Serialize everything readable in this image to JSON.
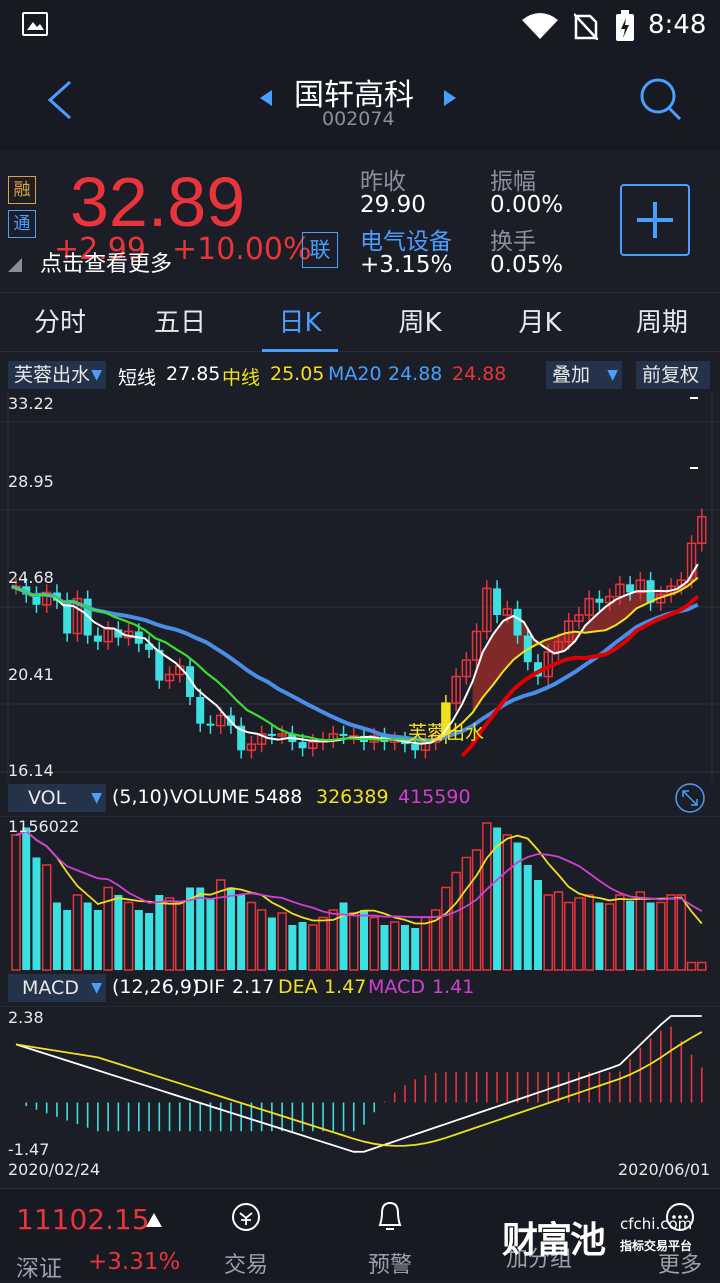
{
  "status": {
    "time": "8:48"
  },
  "header": {
    "title": "国轩高科",
    "code": "002074"
  },
  "quote": {
    "price": "32.89",
    "change": "+2.99",
    "change_pct": "+10.00%",
    "tag_rong": "融",
    "tag_tong": "通",
    "tag_lian": "联",
    "hint": "点击查看更多",
    "prev_close_label": "昨收",
    "prev_close": "29.90",
    "amplitude_label": "振幅",
    "amplitude": "0.00%",
    "sector_label": "电气设备",
    "sector_change": "+3.15%",
    "turnover_label": "换手",
    "turnover": "0.05%",
    "colors": {
      "up": "#e8343a",
      "down": "#3de0e0",
      "accent": "#4a9eff"
    }
  },
  "tabs": [
    "分时",
    "五日",
    "日K",
    "周K",
    "月K",
    "周期"
  ],
  "active_tab": 2,
  "kline": {
    "indicator": "芙蓉出水",
    "short_label": "短线",
    "short_val": "27.85",
    "mid_label": "中线",
    "mid_val": "25.05",
    "ma_label": "MA20",
    "ma_val": "24.88",
    "extra_val": "24.88",
    "overlay_btn": "叠加",
    "adjust_btn": "前复权",
    "y_labels": [
      "33.22",
      "28.95",
      "24.68",
      "20.41",
      "16.14"
    ],
    "signal_text": "芙蓉出水"
  },
  "volume": {
    "indicator": "VOL",
    "params": "(5,10)",
    "name": "VOLUME",
    "v1": "5488",
    "v2": "326389",
    "v3": "415590",
    "max_label": "1156022"
  },
  "macd": {
    "indicator": "MACD",
    "params": "(12,26,9)",
    "dif_label": "DIF",
    "dif": "2.17",
    "dea_label": "DEA",
    "dea": "1.47",
    "macd_label": "MACD",
    "macd": "1.41",
    "top_label": "2.38",
    "bottom_label": "-1.47",
    "date_start": "2020/02/24",
    "date_end": "2020/06/01"
  },
  "bottom_nav": {
    "index_value": "11102.15",
    "index_name": "深证",
    "index_change": "+3.31%",
    "items": [
      "交易",
      "预警",
      "加分组",
      "更多"
    ],
    "watermark": "财富池",
    "watermark_site": "cfchi.com",
    "watermark_sub": "指标交易平台"
  }
}
